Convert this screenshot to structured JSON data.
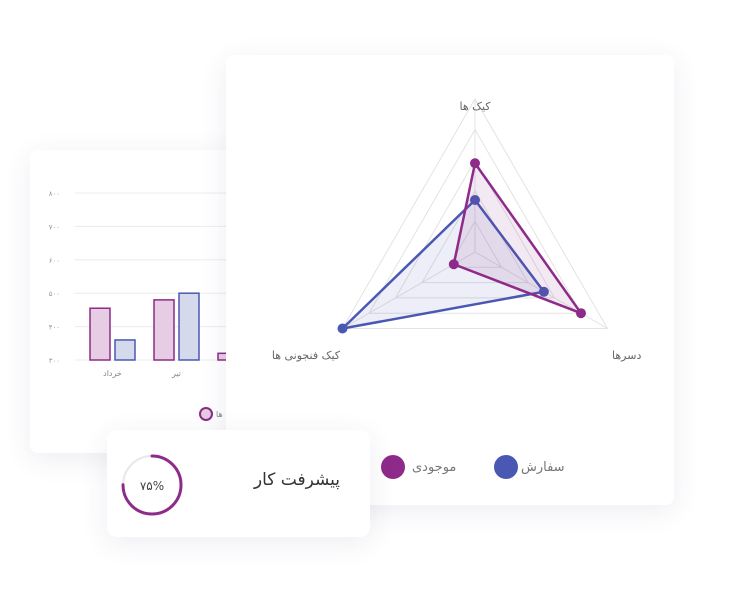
{
  "chart_data": [
    {
      "type": "bar",
      "categories": [
        "خرداد",
        "تیر",
        ""
      ],
      "series": [
        {
          "name": "",
          "values": [
            455,
            480,
            320
          ]
        },
        {
          "name": "",
          "values": [
            360,
            500,
            null
          ]
        }
      ],
      "y_ticks": [
        "۳۰۰",
        "۴۰۰",
        "۵۰۰",
        "۶۰۰",
        "۷۰۰",
        "۸۰۰"
      ],
      "ylim": [
        300,
        800
      ],
      "legend": [
        "ها"
      ],
      "grid": true,
      "colors": {
        "series_a_fill": "#e7cde3",
        "series_a_stroke": "#8e2a8a",
        "series_b_fill": "#d5d9ec",
        "series_b_stroke": "#4b58b3"
      }
    },
    {
      "type": "radar",
      "axes": [
        "کیک ها",
        "دسرها",
        "کیک فنجونی ها"
      ],
      "range": [
        0,
        5
      ],
      "rings": 5,
      "series": [
        {
          "name": "موجودی",
          "color": "#8e2a8a",
          "values": [
            2.9,
            4.0,
            0.8
          ]
        },
        {
          "name": "سفارش",
          "color": "#4b58b3",
          "values": [
            1.7,
            2.6,
            5.0
          ]
        }
      ],
      "legend_placement": "bottom"
    }
  ],
  "progress": {
    "title": "پیشرفت کار",
    "value_label": "۷۵%",
    "fraction": 0.75,
    "color": "#8e2a8a"
  }
}
